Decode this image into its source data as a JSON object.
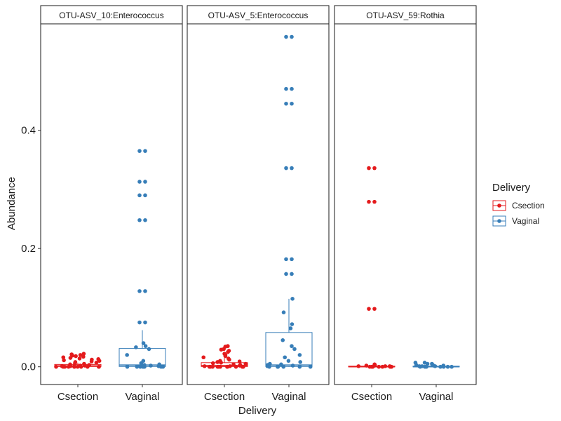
{
  "chart_data": {
    "type": "box",
    "xlabel": "Delivery",
    "ylabel": "Abundance",
    "ylim": [
      -0.03,
      0.58
    ],
    "yticks": [
      "0.0",
      "0.2",
      "0.4"
    ],
    "ytick_values": [
      0.0,
      0.2,
      0.4
    ],
    "categories": [
      "Csection",
      "Vaginal"
    ],
    "colors": {
      "Csection": "#E41A1C",
      "Vaginal": "#377EB8"
    },
    "legend": {
      "title": "Delivery",
      "position": "right",
      "entries": [
        "Csection",
        "Vaginal"
      ]
    },
    "grid": false,
    "panels": [
      {
        "title": "OTU-ASV_10:Enterococcus",
        "boxes": [
          {
            "category": "Csection",
            "q1": 0.0005,
            "median": 0.0015,
            "q3": 0.004,
            "whisker_low": 0.0,
            "whisker_high": 0.007,
            "points": [
              0.022,
              0.021,
              0.02,
              0.019,
              0.018,
              0.017,
              0.016,
              0.015,
              0.014,
              0.013,
              0.012,
              0.011,
              0.01,
              0.009,
              0.008,
              0.007,
              0.006,
              0.005,
              0.004,
              0.003,
              0.002,
              0.002,
              0.001,
              0.001,
              0.001,
              0.0,
              0.0,
              0.0,
              0.0,
              0.0,
              0.0,
              0.0,
              0.0,
              0.0,
              0.0,
              0.0
            ]
          },
          {
            "category": "Vaginal",
            "q1": 0.0005,
            "median": 0.003,
            "q3": 0.031,
            "whisker_low": 0.0,
            "whisker_high": 0.062,
            "points": [
              0.365,
              0.365,
              0.313,
              0.313,
              0.29,
              0.29,
              0.248,
              0.248,
              0.128,
              0.128,
              0.075,
              0.075,
              0.04,
              0.035,
              0.033,
              0.03,
              0.02,
              0.01,
              0.006,
              0.004,
              0.003,
              0.002,
              0.001,
              0.001,
              0.0,
              0.0,
              0.0,
              0.0,
              0.0,
              0.0,
              0.0,
              0.0
            ]
          }
        ]
      },
      {
        "title": "OTU-ASV_5:Enterococcus",
        "boxes": [
          {
            "category": "Csection",
            "q1": 0.0005,
            "median": 0.002,
            "q3": 0.007,
            "whisker_low": 0.0,
            "whisker_high": 0.015,
            "points": [
              0.035,
              0.034,
              0.03,
              0.029,
              0.027,
              0.025,
              0.022,
              0.02,
              0.018,
              0.016,
              0.014,
              0.012,
              0.01,
              0.009,
              0.008,
              0.007,
              0.006,
              0.005,
              0.004,
              0.003,
              0.002,
              0.001,
              0.001,
              0.0,
              0.0,
              0.0,
              0.0,
              0.0,
              0.0,
              0.0,
              0.0,
              0.0,
              0.0,
              0.0
            ]
          },
          {
            "category": "Vaginal",
            "q1": 0.0005,
            "median": 0.003,
            "q3": 0.058,
            "whisker_low": 0.0,
            "whisker_high": 0.115,
            "points": [
              0.558,
              0.558,
              0.47,
              0.47,
              0.445,
              0.445,
              0.336,
              0.336,
              0.182,
              0.182,
              0.157,
              0.157,
              0.115,
              0.092,
              0.072,
              0.065,
              0.045,
              0.035,
              0.03,
              0.02,
              0.016,
              0.01,
              0.008,
              0.005,
              0.004,
              0.003,
              0.002,
              0.001,
              0.0,
              0.0,
              0.0,
              0.0,
              0.0,
              0.0,
              0.0
            ]
          }
        ]
      },
      {
        "title": "OTU-ASV_59:Rothia",
        "boxes": [
          {
            "category": "Csection",
            "q1": 0.0,
            "median": 0.0,
            "q3": 0.001,
            "whisker_low": 0.0,
            "whisker_high": 0.002,
            "points": [
              0.336,
              0.336,
              0.279,
              0.279,
              0.098,
              0.098,
              0.004,
              0.003,
              0.002,
              0.002,
              0.001,
              0.001,
              0.001,
              0.0,
              0.0,
              0.0,
              0.0,
              0.0,
              0.0,
              0.0
            ]
          },
          {
            "category": "Vaginal",
            "q1": 0.0,
            "median": 0.0,
            "q3": 0.001,
            "whisker_low": 0.0,
            "whisker_high": 0.002,
            "points": [
              0.007,
              0.007,
              0.005,
              0.005,
              0.004,
              0.003,
              0.002,
              0.002,
              0.001,
              0.001,
              0.001,
              0.0,
              0.0,
              0.0,
              0.0,
              0.0,
              0.0,
              0.0
            ]
          }
        ]
      }
    ]
  }
}
